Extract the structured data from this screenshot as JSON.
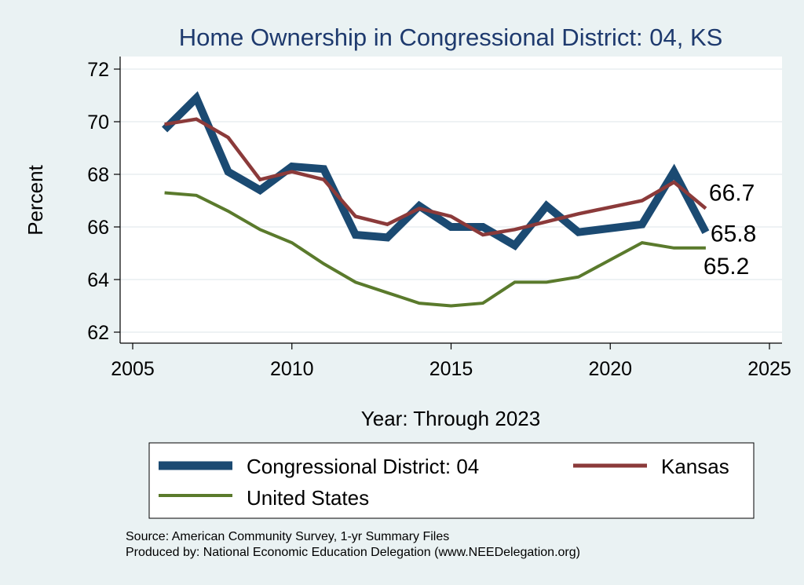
{
  "chart_data": {
    "type": "line",
    "title": "Home Ownership in Congressional District:  04, KS",
    "xlabel": "Year: Through 2023",
    "ylabel": "Percent",
    "xlim": [
      2005,
      2025
    ],
    "ylim": [
      62,
      72.5
    ],
    "x_ticks": [
      2005,
      2010,
      2015,
      2020,
      2025
    ],
    "y_ticks": [
      62,
      64,
      66,
      68,
      70,
      72
    ],
    "grid": true,
    "legend_position": "bottom",
    "series": [
      {
        "name": "Congressional District:  04",
        "color": "#1b4a72",
        "x": [
          2006,
          2007,
          2008,
          2009,
          2010,
          2011,
          2012,
          2013,
          2014,
          2015,
          2016,
          2017,
          2018,
          2019,
          2021,
          2022,
          2023
        ],
        "values": [
          69.7,
          70.9,
          68.1,
          67.4,
          68.3,
          68.2,
          65.7,
          65.6,
          66.8,
          66.0,
          66.0,
          65.3,
          66.8,
          65.8,
          66.1,
          68.1,
          65.8
        ],
        "end_label": "65.8"
      },
      {
        "name": "Kansas",
        "color": "#8b3a3a",
        "x": [
          2006,
          2007,
          2008,
          2009,
          2010,
          2011,
          2012,
          2013,
          2014,
          2015,
          2016,
          2017,
          2018,
          2019,
          2021,
          2022,
          2023
        ],
        "values": [
          69.9,
          70.1,
          69.4,
          67.8,
          68.1,
          67.8,
          66.4,
          66.1,
          66.7,
          66.4,
          65.7,
          65.9,
          66.2,
          66.5,
          67.0,
          67.7,
          66.7
        ],
        "end_label": "66.7"
      },
      {
        "name": "United States",
        "color": "#5a7a2c",
        "x": [
          2006,
          2007,
          2008,
          2009,
          2010,
          2011,
          2012,
          2013,
          2014,
          2015,
          2016,
          2017,
          2018,
          2019,
          2021,
          2022,
          2023
        ],
        "values": [
          67.3,
          67.2,
          66.6,
          65.9,
          65.4,
          64.6,
          63.9,
          63.5,
          63.1,
          63.0,
          63.1,
          63.9,
          63.9,
          64.1,
          65.4,
          65.2,
          65.2
        ],
        "end_label": "65.2"
      }
    ]
  },
  "footer": {
    "source": "Source: American Community Survey, 1-yr Summary Files",
    "produced": "Produced by: National Economic Education Delegation (www.NEEDelegation.org)"
  }
}
